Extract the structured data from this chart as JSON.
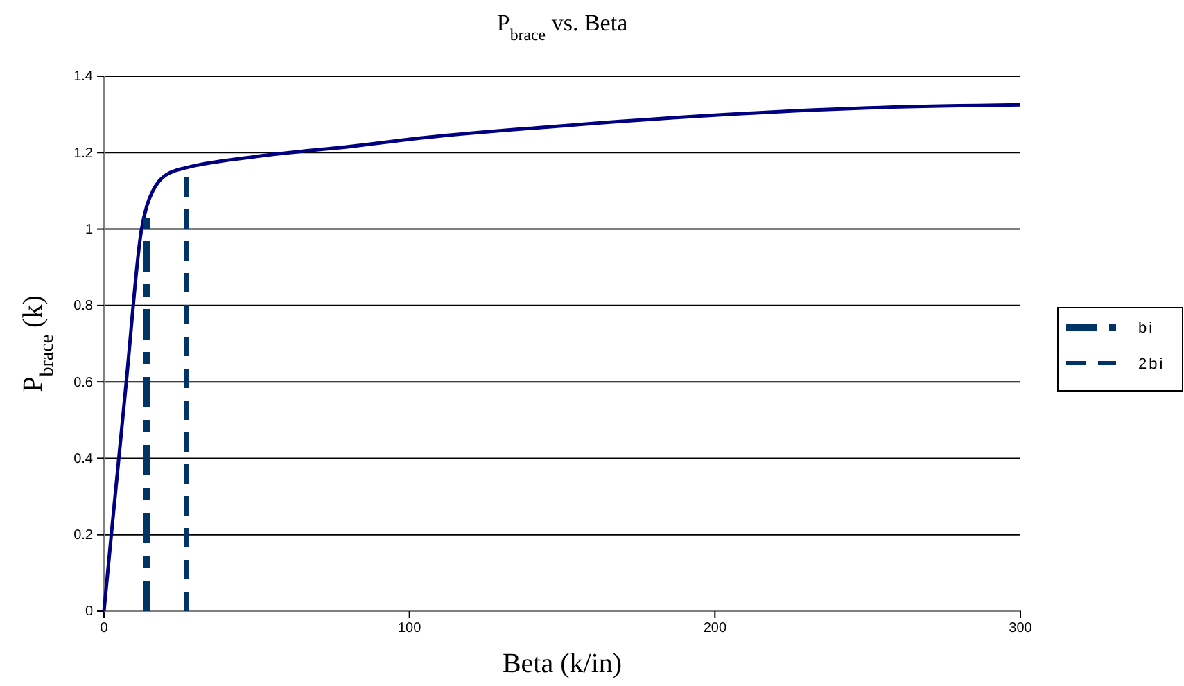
{
  "chart_data": {
    "type": "line",
    "title": "P$_{brace}$ vs. Beta",
    "xlabel": "Beta (k/in)",
    "ylabel": "P$_{brace}$ (k)",
    "xlim": [
      0,
      300
    ],
    "xticks": [
      0,
      100,
      200,
      300
    ],
    "ylim": [
      0,
      1.4
    ],
    "yticks": [
      0,
      0.2,
      0.4,
      0.6,
      0.8,
      1,
      1.2,
      1.4
    ],
    "grid": "y",
    "legend": "right",
    "marker": "none",
    "series": [
      {
        "color": "#000080",
        "line_style": "solid",
        "x": [
          0,
          2.4,
          7.3,
          12.3,
          14,
          16,
          18,
          20,
          23,
          26.6,
          50,
          83.8,
          100,
          150,
          200,
          250,
          300
        ],
        "values": [
          0,
          0.2,
          0.6,
          1,
          1.06,
          1.1,
          1.125,
          1.14,
          1.152,
          1.16,
          1.19,
          1.219,
          1.235,
          1.27,
          1.298,
          1.317,
          1.325
        ]
      },
      {
        "name": "bi",
        "color": "#003366",
        "line_style": "dashdot",
        "x": [
          14,
          14
        ],
        "values": [
          0,
          1.03
        ]
      },
      {
        "name": "2bi",
        "color": "#003366",
        "line_style": "dashed",
        "x": [
          27,
          27
        ],
        "values": [
          0,
          1.16
        ]
      }
    ]
  }
}
